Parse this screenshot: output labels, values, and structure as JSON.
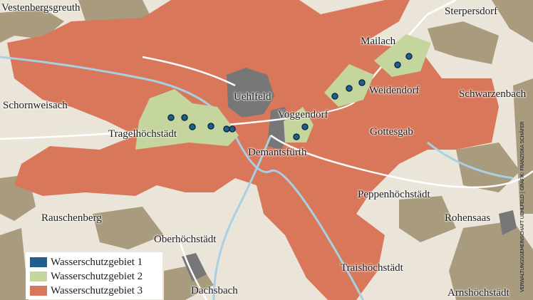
{
  "places": {
    "vestenbergsgreuth": "Vestenbergsgreuth",
    "sterpersdorf": "Sterpersdorf",
    "mailach": "Mailach",
    "uehlfeld": "Uehlfeld",
    "weidendorf": "Weidendorf",
    "schwarzenbach": "Schwarzenbach",
    "schornweisach": "Schornweisach",
    "tragelhoechstaedt": "Tragelhöchstädt",
    "voggendorf": "Voggendorf",
    "gottesgab": "Gottesgab",
    "demantsfuerth": "Demantsfürth",
    "peppenhoechstaedt": "Peppenhöchstädt",
    "rauschenberg": "Rauschenberg",
    "rohensaas": "Rohensaas",
    "oberhoechstaedt": "Oberhöchstädt",
    "traishoechstaedt": "Traishöchstädt",
    "dachsbach": "Dachsbach",
    "arnshoechstaedt": "Arnshöchstädt"
  },
  "legend": {
    "items": [
      {
        "label": "Wasserschutzgebiet 1",
        "color": "#1f5f8b"
      },
      {
        "label": "Wasserschutzgebiet 2",
        "color": "#c5d59e"
      },
      {
        "label": "Wasserschutzgebiet 3",
        "color": "#d9775a"
      }
    ]
  },
  "credit": "VERWALTUNGSGEMEINSCHAFT UEHLFELD | GRAFIK: FRANZISKA SCHÄFER",
  "colors": {
    "background": "#ebe5d9",
    "forest": "#a99b7d",
    "settlement": "#777777",
    "water": "#a8d0e2"
  }
}
